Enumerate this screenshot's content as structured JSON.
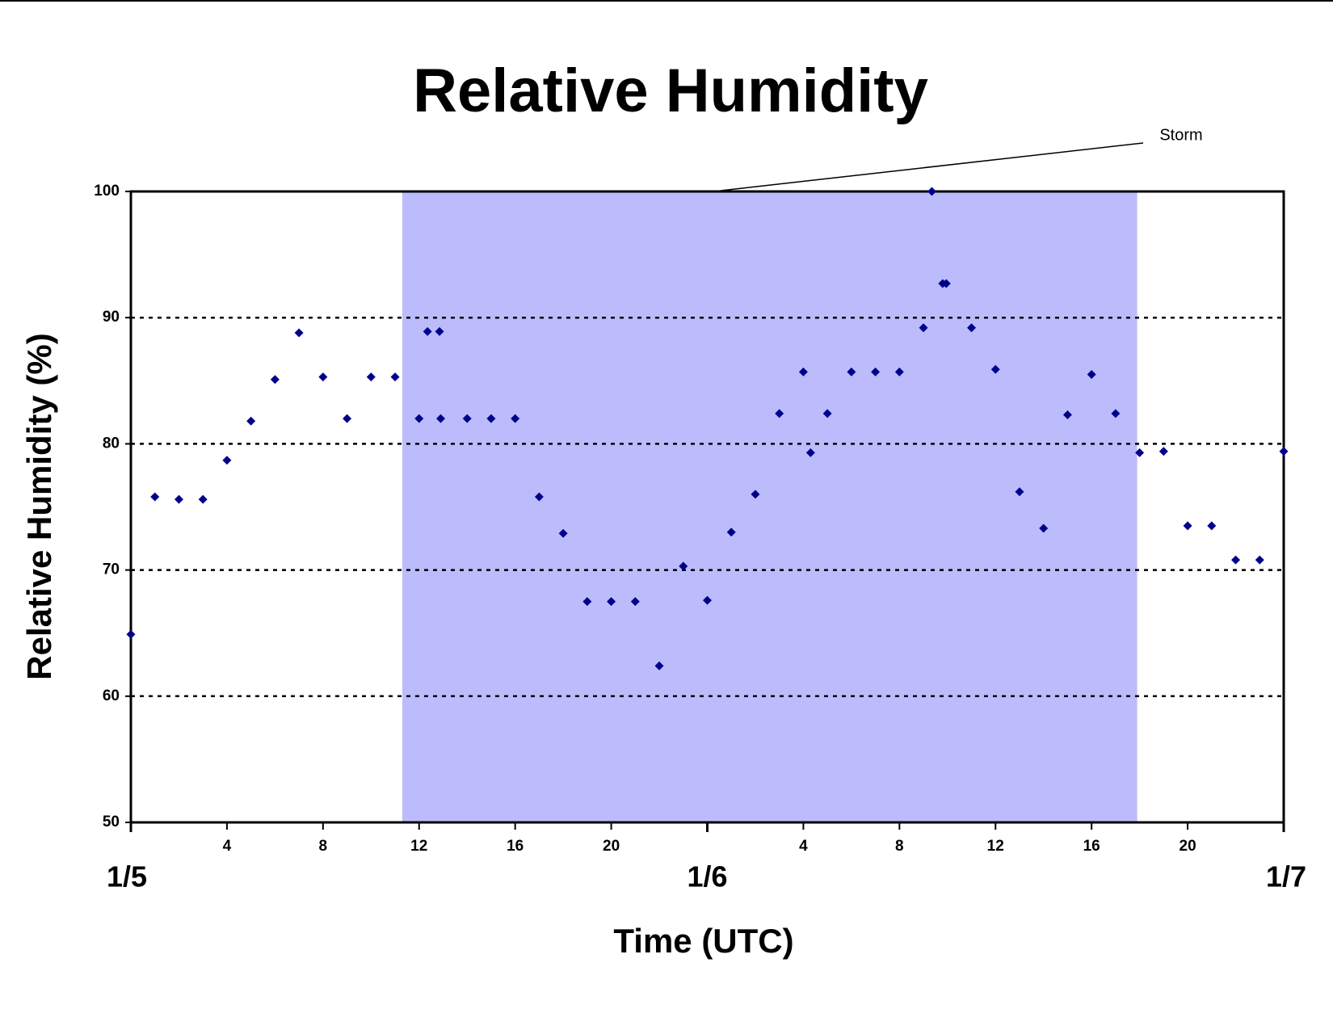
{
  "chart_data": {
    "type": "scatter",
    "title": "Relative Humidity",
    "x_label": "Time (UTC)",
    "y_label": "Relative Humidity (%)",
    "annotation": "Storm",
    "storm_span": [
      11.3,
      41.9
    ],
    "storm_color": "#bcbcfc",
    "color": "#00008b",
    "grid": true,
    "xlim": [
      0,
      48
    ],
    "ylim": [
      50,
      100
    ],
    "yticks": [
      50,
      60,
      70,
      80,
      90,
      100
    ],
    "xticks": [
      4,
      8,
      12,
      16,
      20,
      {
        "value": 28,
        "label": "4"
      },
      {
        "value": 32,
        "label": "8"
      },
      {
        "value": 36,
        "label": "12"
      },
      {
        "value": 40,
        "label": "16"
      },
      {
        "value": 44,
        "label": "20"
      }
    ],
    "date_ticks": [
      {
        "value": 0,
        "label": "1/5"
      },
      {
        "value": 24,
        "label": "1/6"
      },
      {
        "value": 48,
        "label": "1/7"
      }
    ],
    "x": [
      0,
      1,
      2,
      3,
      4,
      5,
      6,
      7,
      8,
      9,
      10,
      11,
      12,
      12.35,
      12.85,
      12.9,
      14,
      15,
      16,
      17,
      18,
      19,
      20,
      21,
      22,
      23,
      24,
      25,
      26,
      27,
      28,
      28.3,
      29,
      30,
      31,
      32,
      33,
      33.35,
      33.8,
      33.95,
      35,
      36,
      37,
      38,
      39,
      40,
      41,
      42,
      43,
      44,
      45,
      46,
      47,
      48
    ],
    "values": [
      64.9,
      75.8,
      75.6,
      75.6,
      78.7,
      81.8,
      85.1,
      88.8,
      85.3,
      82.0,
      85.3,
      85.3,
      82.0,
      88.9,
      88.9,
      82.0,
      82.0,
      82.0,
      82.0,
      75.8,
      72.9,
      67.5,
      67.5,
      67.5,
      62.4,
      70.3,
      67.6,
      73.0,
      76.0,
      82.4,
      85.7,
      79.3,
      82.4,
      85.7,
      85.7,
      85.7,
      89.2,
      100,
      92.7,
      92.7,
      89.2,
      85.9,
      76.2,
      73.3,
      82.3,
      85.5,
      82.4,
      79.3,
      79.4,
      73.5,
      73.5,
      70.8,
      70.8,
      79.4
    ]
  }
}
